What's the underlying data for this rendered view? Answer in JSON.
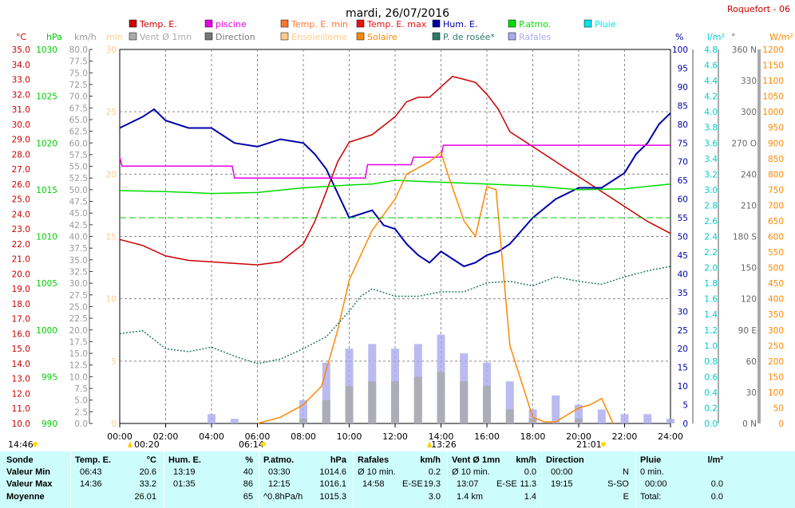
{
  "title": "mardi, 26/07/2016",
  "station": "Roquefort - 06",
  "legend": [
    {
      "label": "Temp. E.",
      "color": "#cc0000"
    },
    {
      "label": "piscine",
      "color": "#e600e6"
    },
    {
      "label": "Temp. E. min",
      "color": "#ff7733"
    },
    {
      "label": "Temp. E. max",
      "color": "#ee1111"
    },
    {
      "label": "Hum. E.",
      "color": "#0000aa"
    },
    {
      "label": "P.atmo.",
      "color": "#00dd00"
    },
    {
      "label": "Pluie",
      "color": "#00e5e5"
    },
    {
      "label": "Vent Ø 1mn",
      "color": "#aaaaaa"
    },
    {
      "label": "Direction",
      "color": "#777777"
    },
    {
      "label": "Ensoleilleme",
      "color": "#ffcc88"
    },
    {
      "label": "Solaire",
      "color": "#ff8800"
    },
    {
      "label": "P. de rosée*",
      "color": "#2a7a6a"
    },
    {
      "label": "Rafales",
      "color": "#aaaaee"
    }
  ],
  "axes": {
    "temp": {
      "unit": "°C",
      "color": "#cc0000",
      "ticks": [
        "35.0",
        "34.0",
        "33.0",
        "32.0",
        "31.0",
        "30.0",
        "29.0",
        "28.0",
        "27.0",
        "26.0",
        "25.0",
        "24.0",
        "23.0",
        "22.0",
        "21.0",
        "20.0",
        "19.0",
        "18.0",
        "17.0",
        "16.0",
        "15.0",
        "14.0",
        "13.0",
        "12.0",
        "11.0",
        "10.0"
      ]
    },
    "pressure": {
      "unit": "hPa",
      "color": "#00cc00",
      "ticks": [
        "1030",
        "1025",
        "1020",
        "1015",
        "1010",
        "1005",
        "1000",
        "995",
        "990"
      ]
    },
    "wind": {
      "unit": "km/h",
      "color": "#999999",
      "ticks": [
        "80.0",
        "77.5",
        "75.0",
        "72.5",
        "70.0",
        "67.5",
        "65.0",
        "62.5",
        "60.0",
        "57.5",
        "55.0",
        "52.5",
        "50.0",
        "47.5",
        "45.0",
        "42.5",
        "40.0",
        "37.5",
        "35.0",
        "32.5",
        "30.0",
        "27.5",
        "25.0",
        "22.5",
        "20.0",
        "17.5",
        "15.0",
        "12.5",
        "10.0",
        "7.5",
        "5.0",
        "2.5",
        "0.0"
      ]
    },
    "minutes": {
      "unit": "min",
      "color": "#ffcc88",
      "ticks": [
        "30",
        "25",
        "20",
        "15",
        "10",
        "5",
        "0"
      ]
    },
    "humidity": {
      "unit": "%",
      "color": "#0000aa",
      "ticks": [
        "100",
        "95",
        "90",
        "85",
        "80",
        "75",
        "70",
        "65",
        "60",
        "55",
        "50",
        "45",
        "40",
        "35",
        "30",
        "25",
        "20",
        "15",
        "10",
        "5",
        "0"
      ]
    },
    "rain": {
      "unit": "l/m²",
      "color": "#00cccc",
      "ticks": [
        "4.8",
        "4.6",
        "4.4",
        "4.2",
        "4.0",
        "3.8",
        "3.6",
        "3.4",
        "3.2",
        "3.0",
        "2.8",
        "2.6",
        "2.4",
        "2.2",
        "2.0",
        "1.8",
        "1.6",
        "1.4",
        "1.2",
        "1.0",
        "0.8",
        "0.6",
        "0.4",
        "0.2",
        "0.0"
      ]
    },
    "direction": {
      "unit": "°",
      "color": "#666666",
      "ticks": [
        "360 N",
        "330",
        "300",
        "270 O",
        "240",
        "210",
        "180 S",
        "150",
        "120",
        "90 E",
        "60",
        "30",
        "0 N"
      ]
    },
    "solar": {
      "unit": "W/m²",
      "color": "#ff8800",
      "ticks": [
        "1200",
        "1150",
        "1100",
        "1050",
        "1000",
        "950",
        "900",
        "850",
        "800",
        "750",
        "700",
        "650",
        "600",
        "550",
        "500",
        "450",
        "400",
        "350",
        "300",
        "250",
        "200",
        "150",
        "100",
        "50",
        "0"
      ]
    },
    "time_ticks": [
      "00:00",
      "02:00",
      "04:00",
      "06:00",
      "08:00",
      "10:00",
      "12:00",
      "14:00",
      "16:00",
      "18:00",
      "20:00",
      "22:00",
      "24:00"
    ]
  },
  "markers": {
    "left_time": "14:46",
    "t1": "00:20",
    "sunrise": "06:14",
    "t_max": "13:26",
    "sunset": "21:01"
  },
  "chart_data": {
    "type": "line",
    "x_unit": "hours",
    "series": [
      {
        "name": "Temp. E.",
        "unit": "°C",
        "x": [
          0,
          1,
          2,
          3,
          4,
          5,
          6,
          7,
          8,
          8.5,
          9,
          9.5,
          10,
          11,
          12,
          12.5,
          13,
          13.5,
          14,
          14.5,
          15,
          15.5,
          16,
          16.5,
          17,
          18,
          19,
          20,
          21,
          22,
          23,
          24
        ],
        "y": [
          22.3,
          21.9,
          21.2,
          20.9,
          20.8,
          20.7,
          20.6,
          20.8,
          22.0,
          23.5,
          25.5,
          27.5,
          28.8,
          29.3,
          30.5,
          31.5,
          31.8,
          31.8,
          32.5,
          33.2,
          33.0,
          32.8,
          32.0,
          31.0,
          29.5,
          28.5,
          27.5,
          26.5,
          25.5,
          24.5,
          23.5,
          22.7
        ]
      },
      {
        "name": "Hum. E.",
        "unit": "%",
        "x": [
          0,
          1,
          1.5,
          2,
          3,
          4,
          5,
          6,
          7,
          8,
          8.5,
          9,
          10,
          11,
          11.5,
          12,
          12.5,
          13,
          13.5,
          14,
          14.5,
          15,
          15.5,
          16,
          16.5,
          17,
          18,
          19,
          20,
          21,
          22,
          22.5,
          23,
          23.5,
          24
        ],
        "y": [
          79,
          82,
          84,
          81,
          79,
          79,
          75,
          74,
          76,
          75,
          72,
          68,
          55,
          57,
          53,
          52,
          48,
          45,
          43,
          46,
          44,
          42,
          43,
          45,
          46,
          48,
          55,
          60,
          63,
          63,
          67,
          72,
          75,
          80,
          83
        ]
      },
      {
        "name": "P.atmo.",
        "unit": "hPa",
        "x": [
          0,
          2,
          4,
          6,
          8,
          10,
          11,
          12,
          14,
          16,
          18,
          20,
          22,
          24
        ],
        "y": [
          1014.9,
          1014.8,
          1014.6,
          1014.7,
          1015.2,
          1015.5,
          1015.6,
          1016.0,
          1015.8,
          1015.6,
          1015.4,
          1015.0,
          1015.1,
          1015.6
        ]
      },
      {
        "name": "piscine",
        "unit": "°C",
        "x": [
          0,
          0.1,
          4.9,
          5.0,
          10.7,
          10.8,
          12.7,
          12.8,
          14.0,
          14.1,
          24
        ],
        "y": [
          27.8,
          27.2,
          27.2,
          26.4,
          26.4,
          27.3,
          27.3,
          27.8,
          27.8,
          28.6,
          28.6
        ]
      },
      {
        "name": "Solaire",
        "unit": "W/m²",
        "x": [
          6,
          7,
          8,
          8.8,
          9.5,
          10,
          11,
          12,
          12.5,
          13,
          13.5,
          14,
          14.3,
          15,
          15.5,
          16,
          16.4,
          17,
          18,
          18.5,
          19,
          20,
          20.5,
          21,
          21.5
        ],
        "y": [
          0,
          20,
          60,
          120,
          300,
          460,
          620,
          720,
          800,
          820,
          840,
          870,
          800,
          650,
          600,
          760,
          750,
          250,
          20,
          5,
          5,
          50,
          60,
          80,
          0
        ]
      },
      {
        "name": "P. de rosée*",
        "unit": "°C",
        "x": [
          0,
          1,
          2,
          3,
          4,
          5,
          6,
          7,
          8,
          9,
          10,
          10.5,
          11,
          12,
          13,
          14,
          15,
          16,
          17,
          18,
          19,
          20,
          21,
          22,
          23,
          24
        ],
        "y": [
          16.0,
          16.2,
          15.0,
          14.8,
          15.1,
          14.5,
          14.0,
          14.3,
          15.0,
          15.8,
          17.5,
          18.5,
          19.0,
          18.5,
          18.5,
          18.8,
          18.8,
          19.4,
          19.5,
          19.2,
          19.8,
          19.5,
          19.3,
          19.8,
          20.2,
          20.5
        ]
      },
      {
        "name": "Rafales",
        "unit": "km/h",
        "x": [
          0,
          1,
          2,
          3,
          4,
          5,
          6,
          7,
          8,
          9,
          10,
          11,
          12,
          13,
          14,
          15,
          16,
          17,
          18,
          19,
          20,
          21,
          22,
          23,
          24
        ],
        "y": [
          0,
          0,
          0,
          0,
          2,
          1,
          0,
          0,
          5,
          13,
          16,
          17,
          16,
          17,
          19,
          15,
          13,
          9,
          3,
          6,
          4,
          3,
          2,
          2,
          1
        ]
      },
      {
        "name": "Vent Ø 1mn",
        "unit": "km/h",
        "x": [
          0,
          2,
          4,
          6,
          8,
          9,
          10,
          11,
          12,
          13,
          14,
          15,
          16,
          17,
          18,
          20,
          22,
          24
        ],
        "y": [
          0,
          0,
          0,
          0,
          1,
          5,
          8,
          9,
          9,
          10,
          11,
          9,
          8,
          3,
          1,
          1,
          0,
          0
        ]
      }
    ],
    "reference_lines": [
      {
        "name": "dew threshold",
        "y_hpa": 1012.0
      }
    ],
    "xlim": [
      0,
      24
    ],
    "ylim_temp": [
      10,
      35
    ],
    "ylim_humidity": [
      0,
      100
    ],
    "ylim_pressure": [
      990,
      1030
    ],
    "ylim_solar": [
      0,
      1200
    ],
    "grid": true
  },
  "stats": {
    "sonde": {
      "title": "Sonde",
      "rows": [
        "Valeur Min",
        "Valeur Max",
        "Moyenne"
      ]
    },
    "temp": {
      "title": "Temp. E.",
      "unit": "°C",
      "min_time": "06:43",
      "min_val": "20.6",
      "max_time": "14:36",
      "max_val": "33.2",
      "avg": "26.01"
    },
    "hum": {
      "title": "Hum. E.",
      "unit": "%",
      "min_time": "13:19",
      "min_val": "40",
      "max_time": "01:35",
      "max_val": "86",
      "avg": "65"
    },
    "pres": {
      "title": "P.atmo.",
      "unit": "hPa",
      "min_time": "03:30",
      "min_val": "1014.6",
      "max_time": "12:15",
      "max_val": "1016.1",
      "avg_label": "^0.8hPa/h",
      "avg": "1015.3"
    },
    "gust": {
      "title": "Rafales",
      "unit": "km/h",
      "min_label": "Ø 10 min.",
      "min_val": "0.2",
      "max_time": "14:58",
      "max_dir": "E-SE",
      "max_val": "19.3",
      "avg": "3.0"
    },
    "wind": {
      "title": "Vent Ø 1mn",
      "unit": "km/h",
      "min_label": "Ø 10 min.",
      "min_val": "0.0",
      "max_time": "13:07",
      "max_dir": "E-SE",
      "max_val": "11.3",
      "avg_label": "1.4 km",
      "avg": "1.4"
    },
    "dir": {
      "title": "Direction",
      "min_time": "00:00",
      "min_val": "N",
      "max_time": "19:15",
      "max_val": "S-SO",
      "avg": "E"
    },
    "rain": {
      "title": "Pluie",
      "unit": "l/m²",
      "min_label": "0 min.",
      "max_time": "00:00",
      "max_val": "0.0",
      "avg_label": "Total:",
      "avg": "0.0",
      "min_val": ""
    }
  }
}
